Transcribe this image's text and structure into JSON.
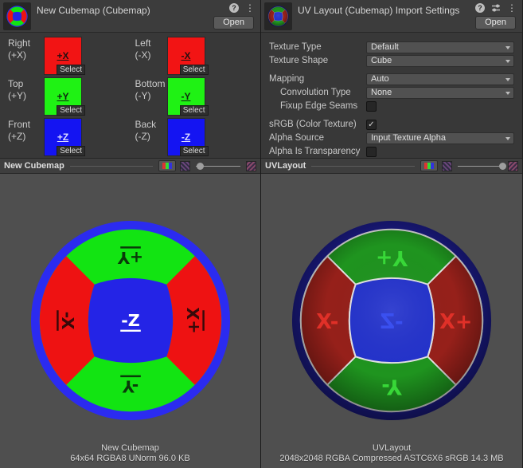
{
  "left_panel": {
    "title": "New Cubemap (Cubemap)",
    "open_label": "Open",
    "icons": {
      "help_glyph": "?",
      "menu_glyph": "⋮"
    },
    "faces": [
      {
        "name": "Right",
        "axis": "(+X)",
        "face_text": "+X",
        "color": "#f21414",
        "text_color": "#241010",
        "select_label": "Select"
      },
      {
        "name": "Left",
        "axis": "(-X)",
        "face_text": "-X",
        "color": "#f21414",
        "text_color": "#241010",
        "select_label": "Select"
      },
      {
        "name": "Top",
        "axis": "(+Y)",
        "face_text": "+Y",
        "color": "#1ff214",
        "text_color": "#0f2410",
        "select_label": "Select"
      },
      {
        "name": "Bottom",
        "axis": "(-Y)",
        "face_text": "-Y",
        "color": "#1ff214",
        "text_color": "#0f2410",
        "select_label": "Select"
      },
      {
        "name": "Front",
        "axis": "(+Z)",
        "face_text": "+Z",
        "color": "#1414f2",
        "text_color": "#dcdcff",
        "select_label": "Select"
      },
      {
        "name": "Back",
        "axis": "(-Z)",
        "face_text": "-Z",
        "color": "#1414f2",
        "text_color": "#dcdcff",
        "select_label": "Select"
      }
    ],
    "preview_bar": {
      "name": "New Cubemap",
      "slider_pos": 0.02
    },
    "preview_info": {
      "line1": "New Cubemap",
      "line2": "64x64  RGBA8 UNorm   96.0 KB"
    },
    "sphere": {
      "ring": "#2b2bf0",
      "green": "#12e412",
      "red": "#ee1212",
      "center": "#2424e6",
      "seam": "",
      "shaded": false,
      "label_style": "rotated",
      "font_size": 21,
      "labels": {
        "top": "+Y",
        "bottom": "-Y",
        "left": "-X",
        "right": "+X",
        "center": "-Z"
      },
      "label_colors": {
        "top": "#0a3a0a",
        "bottom": "#0a3a0a",
        "left": "#380a0a",
        "right": "#380a0a",
        "center": "#ffffff"
      }
    }
  },
  "right_panel": {
    "title": "UV Layout (Cubemap) Import Settings",
    "open_label": "Open",
    "icons": {
      "help_glyph": "?",
      "menu_glyph": "⋮"
    },
    "settings": [
      {
        "label": "Texture Type",
        "value": "Default"
      },
      {
        "label": "Texture Shape",
        "value": "Cube"
      },
      {
        "label": "Mapping",
        "value": "Auto"
      },
      {
        "label": "Convolution Type",
        "value": "None"
      },
      {
        "label": "Fixup Edge Seams",
        "check_glyph": ""
      },
      {
        "label": "sRGB (Color Texture)",
        "check_glyph": "✓"
      },
      {
        "label": "Alpha Source",
        "value": "Input Texture Alpha"
      },
      {
        "label": "Alpha Is Transparency",
        "check_glyph": ""
      }
    ],
    "preview_bar": {
      "name": "UVLayout",
      "slider_pos": 0.93
    },
    "preview_info": {
      "line1": "UVLayout",
      "line2": "2048x2048  RGBA Compressed ASTC6X6 sRGB   14.3 MB"
    },
    "sphere": {
      "ring": "#1b1b86",
      "green": "#1f941f",
      "red": "#96201a",
      "center": "#2433cc",
      "seam": "#e2e2e2",
      "shaded": true,
      "label_style": "flipped",
      "font_size": 26,
      "labels": {
        "top": "+Y",
        "bottom": "-Y",
        "left": "X-",
        "right": "X+",
        "center": "-Z"
      },
      "label_colors": {
        "top": "#38d838",
        "bottom": "#38d838",
        "left": "#e03028",
        "right": "#e03028",
        "center": "#3a50f0"
      }
    }
  }
}
